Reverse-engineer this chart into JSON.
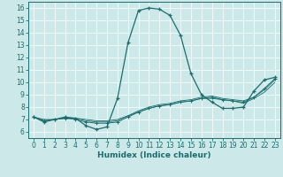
{
  "title": "",
  "xlabel": "Humidex (Indice chaleur)",
  "xlim": [
    -0.5,
    23.5
  ],
  "ylim": [
    5.5,
    16.5
  ],
  "xticks": [
    0,
    1,
    2,
    3,
    4,
    5,
    6,
    7,
    8,
    9,
    10,
    11,
    12,
    13,
    14,
    15,
    16,
    17,
    18,
    19,
    20,
    21,
    22,
    23
  ],
  "yticks": [
    6,
    7,
    8,
    9,
    10,
    11,
    12,
    13,
    14,
    15,
    16
  ],
  "bg_color": "#cce8e8",
  "line_color": "#1a6e6e",
  "line1_x": [
    0,
    1,
    2,
    3,
    4,
    5,
    6,
    7,
    8,
    9,
    10,
    11,
    12,
    13,
    14,
    15,
    16,
    17,
    18,
    19,
    20,
    21,
    22,
    23
  ],
  "line1_y": [
    7.2,
    6.8,
    7.0,
    7.2,
    7.1,
    6.5,
    6.2,
    6.4,
    8.7,
    13.2,
    15.8,
    16.0,
    15.9,
    15.4,
    13.8,
    10.7,
    9.0,
    8.4,
    7.9,
    7.9,
    8.0,
    9.3,
    10.2,
    10.4
  ],
  "line2_x": [
    0,
    1,
    2,
    3,
    4,
    5,
    6,
    7,
    8,
    9,
    10,
    11,
    12,
    13,
    14,
    15,
    16,
    17,
    18,
    19,
    20,
    21,
    22,
    23
  ],
  "line2_y": [
    7.2,
    6.9,
    7.0,
    7.1,
    7.0,
    6.8,
    6.7,
    6.7,
    6.8,
    7.2,
    7.6,
    7.9,
    8.1,
    8.2,
    8.4,
    8.5,
    8.7,
    8.8,
    8.6,
    8.5,
    8.4,
    8.8,
    9.5,
    10.3
  ],
  "line3_x": [
    0,
    1,
    2,
    3,
    4,
    5,
    6,
    7,
    8,
    9,
    10,
    11,
    12,
    13,
    14,
    15,
    16,
    17,
    18,
    19,
    20,
    21,
    22,
    23
  ],
  "line3_y": [
    7.2,
    6.9,
    7.0,
    7.1,
    7.1,
    6.9,
    6.8,
    6.8,
    6.9,
    7.3,
    7.7,
    8.0,
    8.2,
    8.3,
    8.5,
    8.6,
    8.8,
    8.9,
    8.7,
    8.6,
    8.5,
    8.8,
    9.4,
    10.2
  ],
  "line4_x": [
    0,
    1,
    2,
    3,
    4,
    5,
    6,
    7,
    8,
    9,
    10,
    11,
    12,
    13,
    14,
    15,
    16,
    17,
    18,
    19,
    20,
    21,
    22,
    23
  ],
  "line4_y": [
    7.2,
    7.0,
    7.0,
    7.1,
    7.1,
    7.0,
    6.9,
    6.9,
    7.0,
    7.3,
    7.6,
    7.9,
    8.1,
    8.2,
    8.4,
    8.5,
    8.7,
    8.7,
    8.6,
    8.5,
    8.3,
    8.7,
    9.2,
    10.0
  ],
  "tick_fontsize": 5.5,
  "xlabel_fontsize": 6.5
}
